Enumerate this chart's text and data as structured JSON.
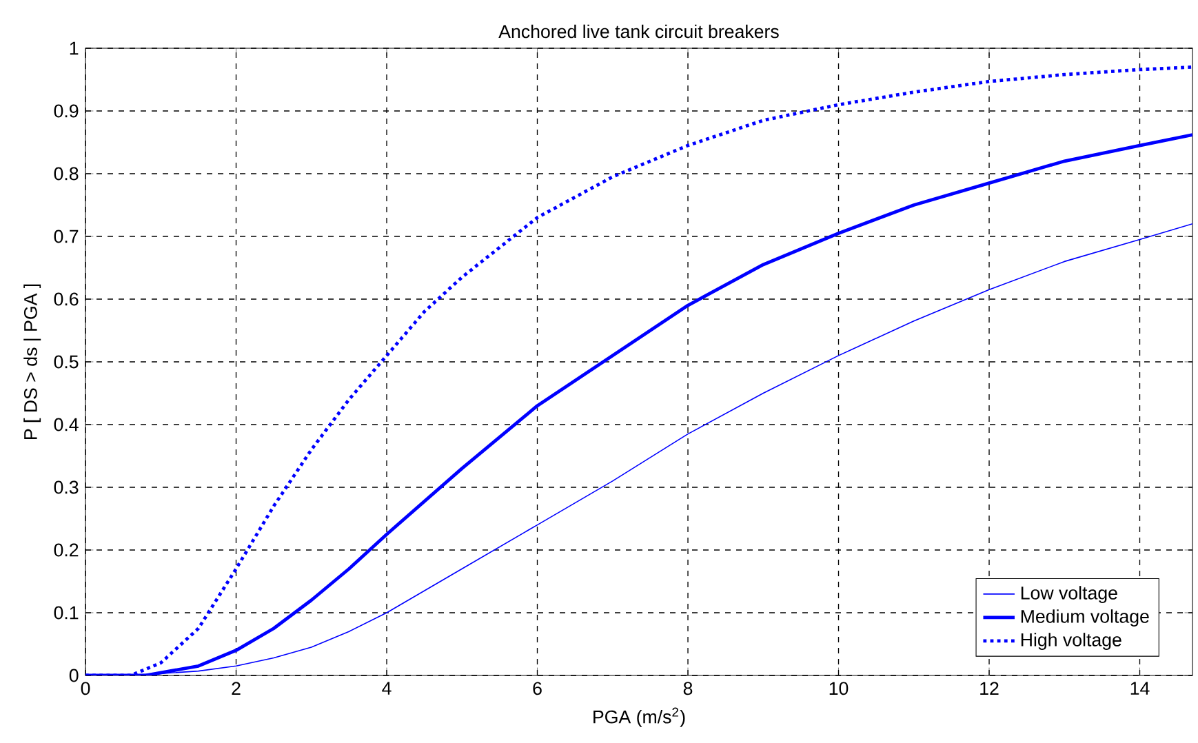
{
  "chart_data": {
    "type": "line",
    "title": "Anchored live tank circuit breakers",
    "xlabel": "PGA (m/s$^{2}$)",
    "ylabel": "P [ DS > ds | PGA ]",
    "xlim": [
      0,
      14.7
    ],
    "ylim": [
      0,
      1
    ],
    "xticks": [
      0,
      2,
      4,
      6,
      8,
      10,
      12,
      14
    ],
    "yticks": [
      0,
      0.1,
      0.2,
      0.3,
      0.4,
      0.5,
      0.6,
      0.7,
      0.8,
      0.9,
      1
    ],
    "grid": true,
    "legend": "bottom right",
    "marker": "none",
    "series": [
      {
        "name": "Low voltage",
        "color": "#0000ff",
        "line_style": "solid",
        "x": [
          0,
          0.5,
          1,
          1.5,
          2,
          2.5,
          3,
          3.5,
          4,
          5,
          6,
          7,
          8,
          9,
          10,
          11,
          12,
          13,
          14,
          14.7
        ],
        "values": [
          0,
          0,
          0.003,
          0.007,
          0.015,
          0.028,
          0.045,
          0.07,
          0.1,
          0.17,
          0.24,
          0.31,
          0.385,
          0.45,
          0.51,
          0.565,
          0.615,
          0.66,
          0.695,
          0.72
        ]
      },
      {
        "name": "Medium voltage",
        "color": "#0000ff",
        "line_style": "solid",
        "x": [
          0,
          0.8,
          1.5,
          2,
          2.5,
          3,
          3.5,
          4,
          5,
          6,
          7,
          8,
          9,
          10,
          11,
          12,
          13,
          14,
          14.7
        ],
        "values": [
          0,
          0,
          0.015,
          0.04,
          0.075,
          0.12,
          0.17,
          0.225,
          0.33,
          0.43,
          0.51,
          0.59,
          0.655,
          0.705,
          0.75,
          0.785,
          0.82,
          0.845,
          0.862
        ]
      },
      {
        "name": "High voltage",
        "color": "#0000ff",
        "line_style": "dotted",
        "x": [
          0,
          0.6,
          1,
          1.5,
          2,
          2.5,
          3,
          3.5,
          4,
          4.5,
          5,
          6,
          7,
          8,
          9,
          10,
          11,
          12,
          13,
          14,
          14.7
        ],
        "values": [
          0,
          0,
          0.02,
          0.075,
          0.17,
          0.27,
          0.36,
          0.44,
          0.51,
          0.58,
          0.635,
          0.73,
          0.795,
          0.845,
          0.885,
          0.91,
          0.93,
          0.947,
          0.958,
          0.966,
          0.97
        ]
      }
    ]
  }
}
